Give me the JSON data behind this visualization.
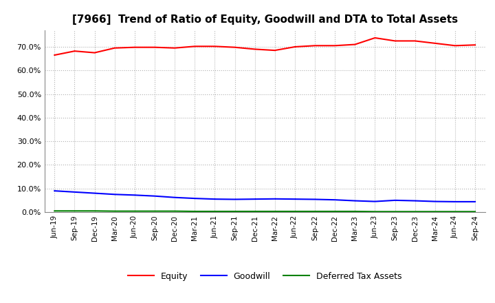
{
  "title": "[7966]  Trend of Ratio of Equity, Goodwill and DTA to Total Assets",
  "x_labels": [
    "Jun-19",
    "Sep-19",
    "Dec-19",
    "Mar-20",
    "Jun-20",
    "Sep-20",
    "Dec-20",
    "Mar-21",
    "Jun-21",
    "Sep-21",
    "Dec-21",
    "Mar-22",
    "Jun-22",
    "Sep-22",
    "Dec-22",
    "Mar-23",
    "Jun-23",
    "Sep-23",
    "Dec-23",
    "Mar-24",
    "Jun-24",
    "Sep-24"
  ],
  "equity": [
    66.5,
    68.2,
    67.5,
    69.5,
    69.8,
    69.8,
    69.5,
    70.2,
    70.2,
    69.8,
    69.0,
    68.5,
    70.0,
    70.5,
    70.5,
    71.0,
    73.8,
    72.5,
    72.5,
    71.5,
    70.5,
    70.8
  ],
  "goodwill": [
    9.0,
    8.5,
    8.0,
    7.5,
    7.2,
    6.8,
    6.2,
    5.8,
    5.5,
    5.4,
    5.5,
    5.6,
    5.5,
    5.4,
    5.2,
    4.8,
    4.5,
    5.0,
    4.8,
    4.5,
    4.4,
    4.4
  ],
  "dta": [
    0.5,
    0.5,
    0.5,
    0.4,
    0.4,
    0.4,
    0.4,
    0.3,
    0.3,
    0.3,
    0.3,
    0.3,
    0.3,
    0.3,
    0.3,
    0.3,
    0.2,
    0.2,
    0.2,
    0.2,
    0.2,
    0.2
  ],
  "equity_color": "#ff0000",
  "goodwill_color": "#0000ff",
  "dta_color": "#008000",
  "ylim": [
    0,
    77
  ],
  "yticks": [
    0,
    10,
    20,
    30,
    40,
    50,
    60,
    70
  ],
  "background_color": "#ffffff",
  "grid_color": "#b0b0b0",
  "legend_labels": [
    "Equity",
    "Goodwill",
    "Deferred Tax Assets"
  ]
}
